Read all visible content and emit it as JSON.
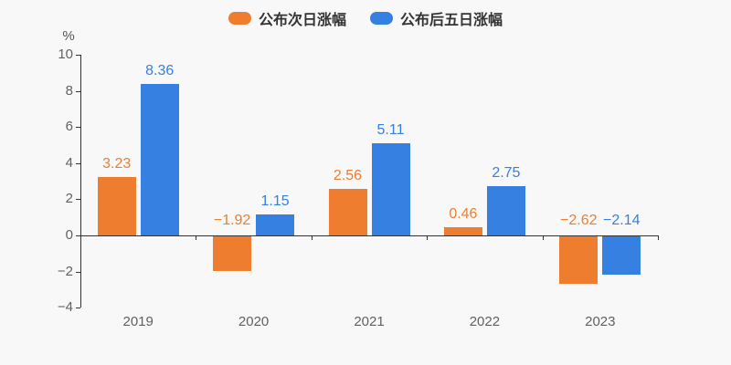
{
  "chart_data": {
    "type": "bar",
    "title": "",
    "ylabel": "%",
    "xlabel": "",
    "categories": [
      "2019",
      "2020",
      "2021",
      "2022",
      "2023"
    ],
    "series": [
      {
        "name": "公布次日涨幅",
        "color": "#EE7D30",
        "values": [
          3.23,
          -1.92,
          2.56,
          0.46,
          -2.62
        ],
        "labels": [
          "3.23",
          "−1.92",
          "2.56",
          "0.46",
          "−2.62"
        ]
      },
      {
        "name": "公布后五日涨幅",
        "color": "#3580E1",
        "values": [
          8.36,
          1.15,
          5.11,
          2.75,
          -2.14
        ],
        "labels": [
          "8.36",
          "1.15",
          "5.11",
          "2.75",
          "−2.14"
        ]
      }
    ],
    "ylim": [
      -4,
      10
    ],
    "ytick_step": 2,
    "yticks": [
      10,
      8,
      6,
      4,
      2,
      0,
      -2,
      -4
    ],
    "ytick_labels": [
      "10",
      "8",
      "6",
      "4",
      "2",
      "0",
      "−2",
      "−4"
    ],
    "grid": false,
    "legend_position": "top-center"
  },
  "colors": {
    "series_orange": "#EE7D30",
    "series_blue": "#3580E1",
    "axis_line": "#333333",
    "tick_text": "#616161",
    "background": "#f8f8f8"
  }
}
